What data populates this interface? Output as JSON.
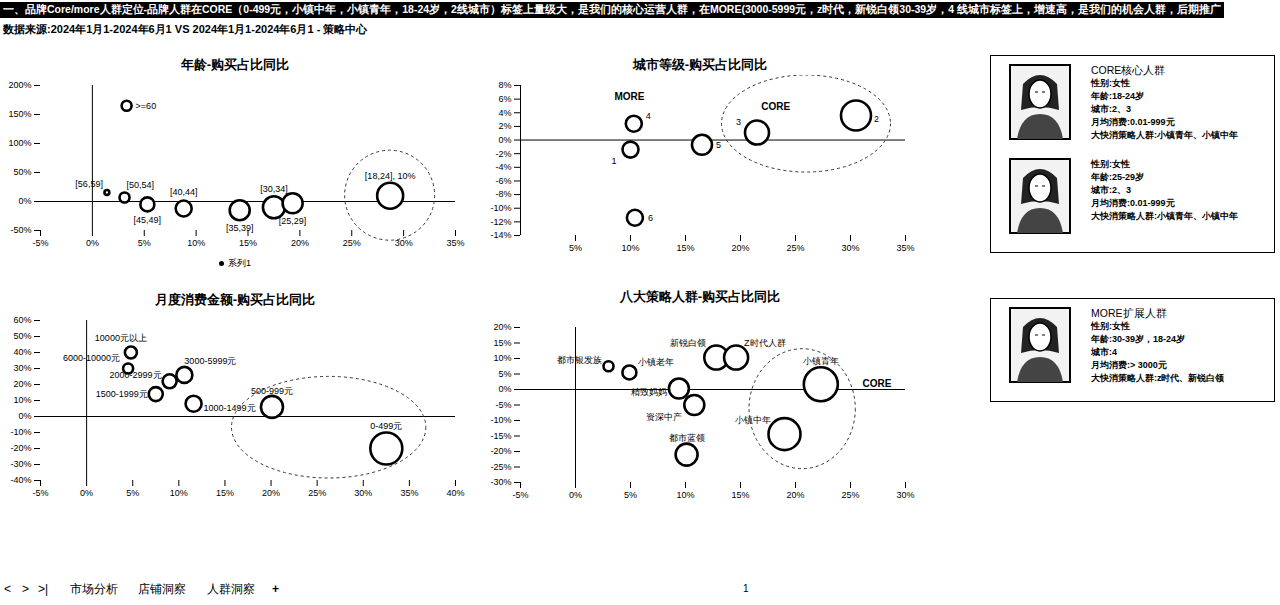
{
  "header": {
    "title": "一、品牌Core/more人群定位-品牌人群在CORE（0-499元，小镇中年，小镇青年，18-24岁，2线城市）标签上量级大，是我们的核心运营人群，在MORE(3000-5999元，z时代，新锐白领30-39岁，4 线城市标签上，增速高，是我们的机会人群，后期推广",
    "subtitle": "数据来源:2024年1月1-2024年6月1 VS 2024年1月1-2024年6月1 - 策略中心"
  },
  "chart_data": [
    {
      "type": "bubble",
      "title": "年龄-购买占比同比",
      "legend": "bottom",
      "xlim": [
        -5,
        35
      ],
      "xticks": [
        {
          "value": -5,
          "label": "-5%"
        },
        {
          "value": 0,
          "label": "0%"
        },
        {
          "value": 5,
          "label": "5%"
        },
        {
          "value": 10,
          "label": "10%"
        },
        {
          "value": 15,
          "label": "15%"
        },
        {
          "value": 20,
          "label": "20%"
        },
        {
          "value": 25,
          "label": "25%"
        },
        {
          "value": 30,
          "label": "30%"
        },
        {
          "value": 35,
          "label": "35%"
        }
      ],
      "ylim": [
        -50,
        200
      ],
      "yticks": [
        {
          "value": -50,
          "label": "-50%"
        },
        {
          "value": 0,
          "label": "0%"
        },
        {
          "value": 50,
          "label": "50%"
        },
        {
          "value": 100,
          "label": "100%"
        },
        {
          "value": 150,
          "label": "150%"
        },
        {
          "value": 200,
          "label": "200%"
        }
      ],
      "series": [
        {
          "name": "系列1",
          "color": "#000000",
          "labels": [
            ">=60",
            "[56,59]",
            "[50,54]",
            "[45,49]",
            "[40,44]",
            "[35,39]",
            "[30,34]",
            "[25,29]",
            "[18,24], 10%"
          ],
          "x": [
            3.3,
            1.4,
            3.1,
            5.3,
            8.8,
            14.2,
            17.5,
            19.3,
            28.7
          ],
          "y": [
            165,
            15.5,
            7,
            -5,
            -12,
            -15,
            -10,
            -3,
            10
          ],
          "sizes": [
            25,
            6,
            25,
            49,
            64,
            100,
            121,
            100,
            169
          ]
        }
      ]
    },
    {
      "type": "bubble",
      "title": "城市等级-购买占比同比",
      "xlim": [
        0,
        35
      ],
      "xticks": [
        {
          "value": 5,
          "label": "5%"
        },
        {
          "value": 10,
          "label": "10%"
        },
        {
          "value": 15,
          "label": "15%"
        },
        {
          "value": 20,
          "label": "20%"
        },
        {
          "value": 25,
          "label": "25%"
        },
        {
          "value": 30,
          "label": "30%"
        },
        {
          "value": 35,
          "label": "35%"
        }
      ],
      "ylim": [
        -14,
        8
      ],
      "yticks": [
        {
          "value": -14,
          "label": "-14%"
        },
        {
          "value": -12,
          "label": "-12%"
        },
        {
          "value": -10,
          "label": "-10%"
        },
        {
          "value": -8,
          "label": "-8%"
        },
        {
          "value": -6,
          "label": "-6%"
        },
        {
          "value": -4,
          "label": "-4%"
        },
        {
          "value": -2,
          "label": "-2%"
        },
        {
          "value": 0,
          "label": "0%"
        },
        {
          "value": 2,
          "label": "2%"
        },
        {
          "value": 4,
          "label": "4%"
        },
        {
          "value": 6,
          "label": "6%"
        },
        {
          "value": 8,
          "label": "8%"
        }
      ],
      "series": [
        {
          "color": "#000000",
          "labels": [
            "1",
            "2",
            "3",
            "4",
            "5",
            "6"
          ],
          "x": [
            10,
            30.5,
            21.5,
            10.3,
            16.5,
            10.4
          ],
          "y": [
            -1.4,
            3.6,
            1.1,
            2.4,
            -0.7,
            -11.4
          ],
          "sizes": [
            64,
            225,
            144,
            64,
            100,
            64
          ]
        }
      ],
      "annotations": [
        {
          "text": "MORE",
          "x": 9.9,
          "y": 6.3
        },
        {
          "text": "CORE",
          "x": 23.2,
          "y": 4.9
        }
      ]
    },
    {
      "type": "bubble",
      "title": "月度消费金额-购买占比同比",
      "xlim": [
        -5,
        40
      ],
      "xticks": [
        {
          "value": -5,
          "label": "-5%"
        },
        {
          "value": 0,
          "label": "0%"
        },
        {
          "value": 5,
          "label": "5%"
        },
        {
          "value": 10,
          "label": "10%"
        },
        {
          "value": 15,
          "label": "15%"
        },
        {
          "value": 20,
          "label": "20%"
        },
        {
          "value": 25,
          "label": "25%"
        },
        {
          "value": 30,
          "label": "30%"
        },
        {
          "value": 35,
          "label": "35%"
        },
        {
          "value": 40,
          "label": "40%"
        }
      ],
      "ylim": [
        -40,
        60
      ],
      "yticks": [
        {
          "value": -40,
          "label": "-40%"
        },
        {
          "value": -30,
          "label": "-30%"
        },
        {
          "value": -20,
          "label": "-20%"
        },
        {
          "value": -10,
          "label": "-10%"
        },
        {
          "value": 0,
          "label": "0%"
        },
        {
          "value": 10,
          "label": "10%"
        },
        {
          "value": 20,
          "label": "20%"
        },
        {
          "value": 30,
          "label": "30%"
        },
        {
          "value": 40,
          "label": "40%"
        },
        {
          "value": 50,
          "label": "50%"
        },
        {
          "value": 60,
          "label": "60%"
        }
      ],
      "series": [
        {
          "color": "#000000",
          "labels": [
            "10000元以上",
            "6000-10000元",
            "3000-5999元",
            "2000-2999元",
            "1500-1999元",
            "1000-1499元",
            "500-999元",
            "0-499元"
          ],
          "x": [
            4.8,
            4.5,
            10.6,
            9,
            7.5,
            11.6,
            20.1,
            32.5
          ],
          "y": [
            40,
            30,
            26,
            22,
            14,
            8,
            6,
            -20
          ],
          "sizes": [
            36,
            25,
            64,
            49,
            49,
            64,
            121,
            256
          ]
        }
      ]
    },
    {
      "type": "bubble",
      "title": "八大策略人群-购买占比同比",
      "xlim": [
        -5,
        30
      ],
      "xticks": [
        {
          "value": -5,
          "label": "-5%"
        },
        {
          "value": 0,
          "label": "0%"
        },
        {
          "value": 5,
          "label": "5%"
        },
        {
          "value": 10,
          "label": "10%"
        },
        {
          "value": 15,
          "label": "15%"
        },
        {
          "value": 20,
          "label": "20%"
        },
        {
          "value": 25,
          "label": "25%"
        },
        {
          "value": 30,
          "label": "30%"
        }
      ],
      "ylim": [
        -30,
        20
      ],
      "yticks": [
        {
          "value": -30,
          "label": "-30%"
        },
        {
          "value": -25,
          "label": "-25%"
        },
        {
          "value": -20,
          "label": "-20%"
        },
        {
          "value": -15,
          "label": "-15%"
        },
        {
          "value": -10,
          "label": "-10%"
        },
        {
          "value": -5,
          "label": "-5%"
        },
        {
          "value": 0,
          "label": "0%"
        },
        {
          "value": 5,
          "label": "5%"
        },
        {
          "value": 10,
          "label": "10%"
        },
        {
          "value": 15,
          "label": "15%"
        },
        {
          "value": 20,
          "label": "20%"
        }
      ],
      "series": [
        {
          "color": "#000000",
          "labels": [
            "都市银发族",
            "小镇老年",
            "精致妈妈",
            "资深中产",
            "新锐白领",
            "Z时代人群",
            "都市蓝领",
            "小镇青年",
            "小镇中年"
          ],
          "x": [
            3,
            4.9,
            9.4,
            10.8,
            12.8,
            14.6,
            10.1,
            22.3,
            19
          ],
          "y": [
            7.5,
            5.5,
            0.3,
            -5,
            10.3,
            10.3,
            -21,
            1.7,
            -14.4
          ],
          "sizes": [
            25,
            49,
            100,
            100,
            144,
            144,
            121,
            289,
            256
          ]
        }
      ],
      "annotations": [
        {
          "text": "CORE",
          "x": 27.4,
          "y": 2
        }
      ]
    }
  ],
  "cards": [
    {
      "items": [
        {
          "title": "CORE核心人群",
          "lines": [
            "性别:女性",
            "年龄:18-24岁",
            "城市:2、3",
            "月均消费:0.01-999元",
            "大快消策略人群:小镇青年、小镇中年"
          ]
        },
        {
          "lines": [
            "性别:女性",
            "年龄:25-29岁",
            "城市:2、3",
            "月均消费:0.01-999元",
            "大快消策略人群:小镇青年、小镇中年"
          ]
        }
      ]
    },
    {
      "items": [
        {
          "title": "MORE扩展人群",
          "lines": [
            "性别:女性",
            "年龄:30-39岁，18-24岁",
            "城市:4",
            "月均消费:> 3000元",
            "大快消策略人群:z时代、新锐白领"
          ]
        }
      ]
    }
  ],
  "tab_bar": {
    "nav": [
      "<",
      ">",
      ">|"
    ],
    "tabs": [
      "市场分析",
      "店铺洞察",
      "人群洞察",
      "+"
    ],
    "page": "1"
  }
}
